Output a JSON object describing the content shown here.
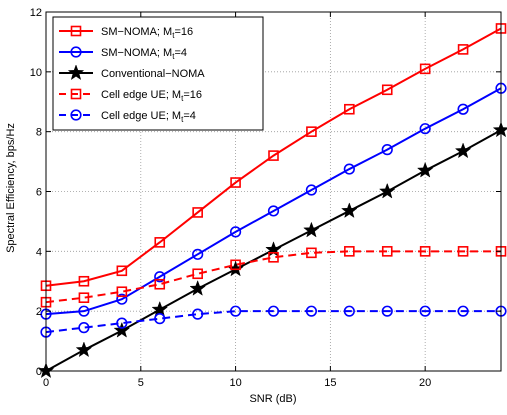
{
  "chart_data": {
    "type": "line",
    "title": "",
    "xlabel": "SNR (dB)",
    "ylabel": "Spectral Efficiency, bps/Hz",
    "xlim": [
      0,
      24
    ],
    "ylim": [
      0,
      12
    ],
    "xticks": [
      0,
      5,
      10,
      15,
      20
    ],
    "yticks": [
      0,
      2,
      4,
      6,
      8,
      10,
      12
    ],
    "grid": true,
    "legend_position": "top-left",
    "x": [
      0,
      2,
      4,
      6,
      8,
      10,
      12,
      14,
      16,
      18,
      20,
      22,
      24
    ],
    "series": [
      {
        "name": "SM−NOMA; M",
        "name_sub": "t",
        "name_suffix": "=16",
        "color": "#ff0000",
        "linestyle": "solid",
        "marker": "square",
        "values": [
          2.85,
          3.0,
          3.35,
          4.3,
          5.3,
          6.3,
          7.2,
          8.0,
          8.75,
          9.4,
          10.1,
          10.75,
          11.45
        ]
      },
      {
        "name": "SM−NOMA; M",
        "name_sub": "t",
        "name_suffix": "=4",
        "color": "#0000ff",
        "linestyle": "solid",
        "marker": "circle",
        "values": [
          1.9,
          2.0,
          2.4,
          3.15,
          3.9,
          4.65,
          5.35,
          6.05,
          6.75,
          7.4,
          8.1,
          8.75,
          9.45
        ]
      },
      {
        "name": "Conventional−NOMA",
        "name_sub": "",
        "name_suffix": "",
        "color": "#000000",
        "linestyle": "solid",
        "marker": "star",
        "values": [
          0.0,
          0.7,
          1.35,
          2.05,
          2.75,
          3.4,
          4.05,
          4.7,
          5.35,
          6.0,
          6.7,
          7.35,
          8.05
        ]
      },
      {
        "name": "Cell edge UE; M",
        "name_sub": "t",
        "name_suffix": "=16",
        "color": "#ff0000",
        "linestyle": "dashed",
        "marker": "square",
        "values": [
          2.3,
          2.45,
          2.65,
          2.9,
          3.25,
          3.55,
          3.8,
          3.95,
          4.0,
          4.0,
          4.0,
          4.0,
          4.0
        ]
      },
      {
        "name": "Cell edge UE; M",
        "name_sub": "t",
        "name_suffix": "=4",
        "color": "#0000ff",
        "linestyle": "dashed",
        "marker": "circle",
        "values": [
          1.3,
          1.45,
          1.6,
          1.75,
          1.9,
          2.0,
          2.0,
          2.0,
          2.0,
          2.0,
          2.0,
          2.0,
          2.0
        ]
      }
    ]
  }
}
